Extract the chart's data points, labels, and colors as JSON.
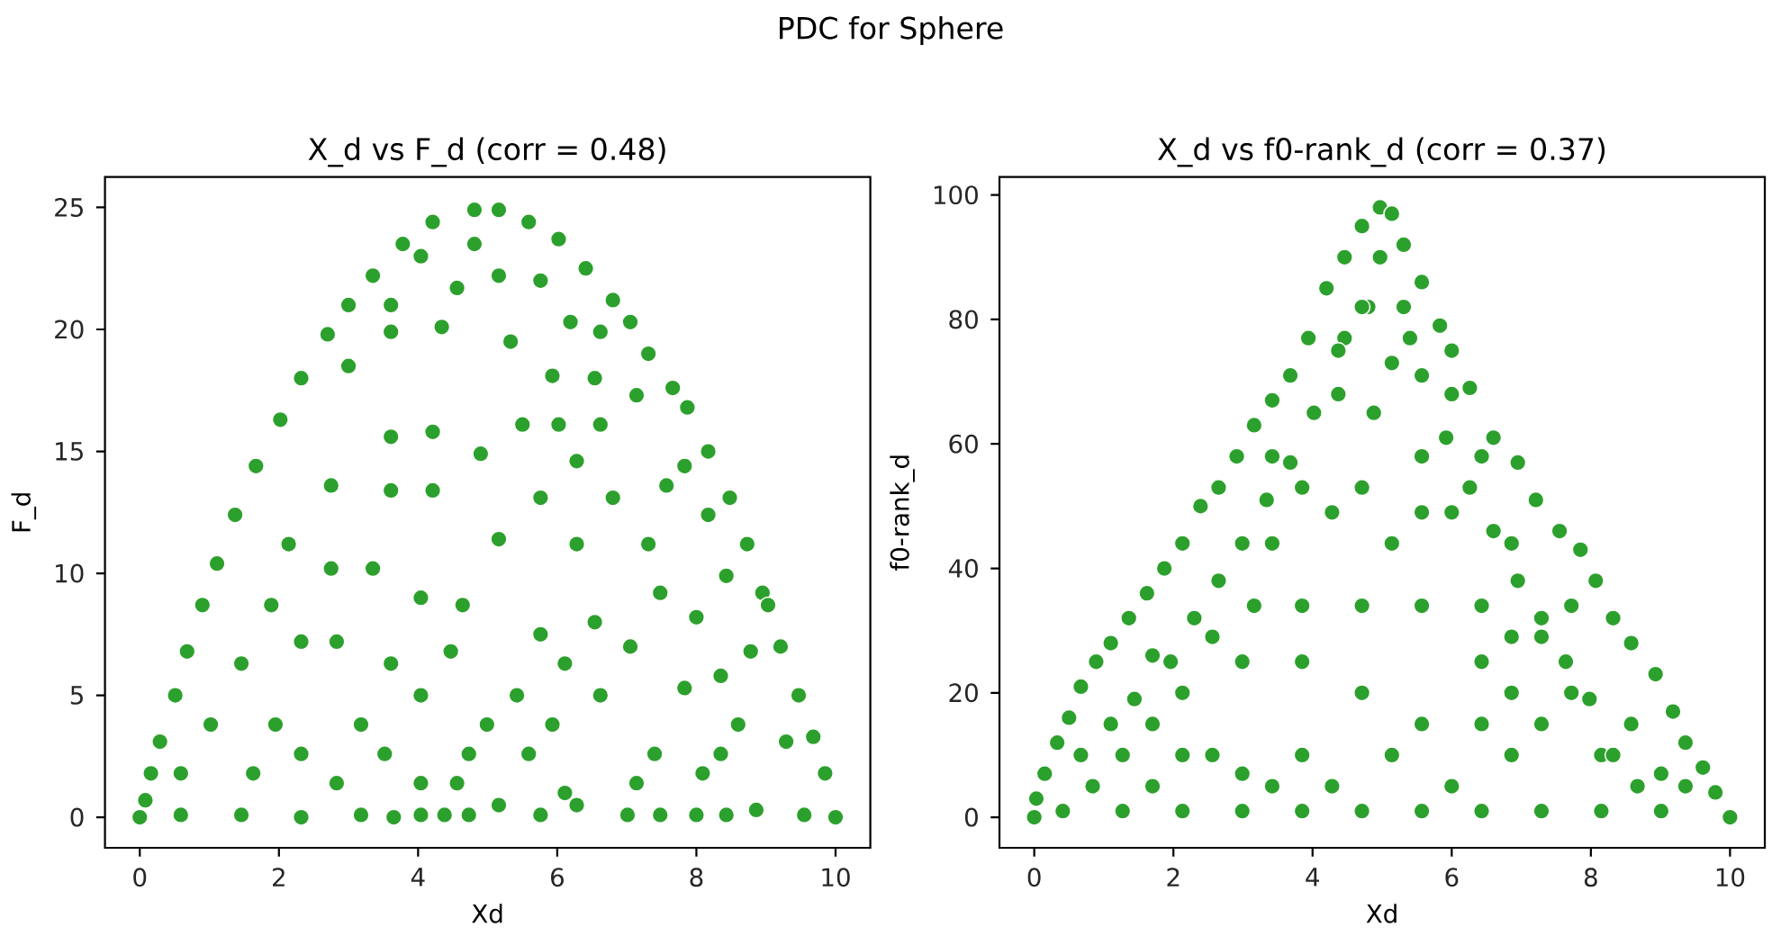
{
  "chart_data": [
    {
      "type": "scatter",
      "title": "X_d vs F_d (corr = 0.48)",
      "xlabel": "Xd",
      "ylabel": "F_d",
      "annotations": [
        "PDC for Sphere"
      ],
      "color": "#2ca02c",
      "marker": "circle",
      "xlim": [
        -0.5,
        10.5
      ],
      "ylim": [
        -1.25,
        26.25
      ],
      "xticks": [
        0,
        2,
        4,
        6,
        8,
        10
      ],
      "yticks": [
        0,
        5,
        10,
        15,
        20,
        25
      ],
      "x": [
        0,
        0.08,
        0.16,
        0.29,
        0.51,
        0.68,
        0.9,
        1.11,
        1.37,
        1.67,
        2.02,
        2.32,
        2.7,
        3.0,
        3.35,
        3.78,
        4.21,
        4.81,
        5.16,
        5.59,
        6.02,
        6.41,
        6.8,
        7.05,
        7.31,
        7.66,
        7.87,
        8.17,
        8.48,
        8.73,
        8.95,
        9.21,
        9.47,
        9.68,
        9.85,
        10,
        4.34,
        3.61,
        5.33,
        5.93,
        3.61,
        4.21,
        3.61,
        4.21,
        2.75,
        3.35,
        2.32,
        2.83,
        1.95,
        0.59,
        1.46,
        2.32,
        3.18,
        3.65,
        4.04,
        4.38,
        4.73,
        5.16,
        5.76,
        6.11,
        6.28,
        7.01,
        7.48,
        8.0,
        8.43,
        8.86,
        9.29,
        9.55,
        6.62,
        7.05,
        7.31,
        7.48,
        7.83,
        8.0,
        8.35,
        8.6,
        8.78,
        9.03,
        7.83,
        7.57,
        8.17,
        8.43,
        7.4,
        7.14,
        8.09,
        8.35,
        6.28,
        5.76,
        6.11,
        5.42,
        4.99,
        4.73,
        4.56,
        4.04,
        3.52,
        5.93,
        5.59,
        6.54,
        6.8,
        6.62,
        7.14,
        6.28,
        5.76,
        5.16,
        5.5,
        4.9,
        4.64,
        4.04,
        2.75,
        2.14,
        1.89,
        1.46,
        1.02,
        0.59,
        1.63,
        2.32,
        2.83,
        3.18,
        4.04,
        3.61,
        4.47,
        3.0,
        3.61,
        4.56,
        5.16,
        5.76,
        4.81,
        4.04,
        6.19,
        6.54,
        6.02,
        6.62
      ],
      "values": [
        0,
        0.7,
        1.8,
        3.1,
        5.0,
        6.8,
        8.7,
        10.4,
        12.4,
        14.4,
        16.3,
        18.0,
        19.8,
        21.0,
        22.2,
        23.5,
        24.4,
        24.9,
        24.9,
        24.4,
        23.7,
        22.5,
        21.2,
        20.3,
        19.0,
        17.6,
        16.8,
        15.0,
        13.1,
        11.2,
        9.2,
        7.0,
        5.0,
        3.3,
        1.8,
        0,
        20.1,
        19.9,
        19.5,
        18.1,
        15.6,
        15.8,
        13.4,
        13.4,
        10.2,
        10.2,
        7.2,
        7.2,
        3.8,
        0.1,
        0.1,
        0,
        0.1,
        0,
        0.1,
        0.1,
        0.1,
        0.5,
        0.1,
        1.0,
        0.5,
        0.1,
        0.1,
        0.1,
        0.1,
        0.3,
        3.1,
        0.1,
        5.0,
        7.0,
        11.2,
        9.2,
        5.3,
        8.2,
        5.8,
        3.8,
        6.8,
        8.7,
        14.4,
        13.6,
        12.4,
        9.9,
        2.6,
        1.4,
        1.8,
        2.6,
        11.2,
        7.5,
        6.3,
        5.0,
        3.8,
        2.6,
        1.4,
        1.4,
        2.6,
        3.8,
        2.6,
        8.0,
        13.1,
        16.1,
        17.3,
        14.6,
        13.1,
        11.4,
        16.1,
        14.9,
        8.7,
        9.0,
        13.6,
        11.2,
        8.7,
        6.3,
        3.8,
        1.8,
        1.8,
        2.6,
        1.4,
        3.8,
        5.0,
        6.3,
        6.8,
        18.5,
        21.0,
        21.7,
        22.2,
        22.0,
        23.5,
        23.0,
        20.3,
        18.0,
        16.1,
        19.9
      ]
    },
    {
      "type": "scatter",
      "title": "X_d vs f0-rank_d (corr = 0.37)",
      "xlabel": "Xd",
      "ylabel": "f0-rank_d",
      "color": "#2ca02c",
      "marker": "circle",
      "xlim": [
        -0.5,
        10.5
      ],
      "ylim": [
        -4.9,
        102.9
      ],
      "xticks": [
        0,
        2,
        4,
        6,
        8,
        10
      ],
      "yticks": [
        0,
        20,
        40,
        60,
        80,
        100
      ],
      "x": [
        0,
        0.03,
        0.15,
        0.33,
        0.5,
        0.67,
        0.89,
        1.1,
        1.36,
        1.62,
        1.87,
        2.13,
        2.39,
        2.65,
        2.91,
        3.16,
        3.42,
        3.68,
        3.94,
        4.2,
        4.46,
        4.71,
        4.97,
        5.14,
        5.31,
        5.57,
        5.83,
        6.0,
        6.26,
        6.6,
        6.95,
        7.21,
        7.55,
        7.85,
        8.07,
        8.32,
        8.58,
        8.93,
        9.18,
        9.36,
        9.61,
        9.79,
        10,
        0.41,
        1.27,
        2.13,
        2.99,
        3.85,
        4.71,
        5.57,
        6.43,
        7.29,
        8.15,
        9.01,
        1.7,
        2.99,
        3.85,
        4.71,
        5.14,
        4.8,
        4.37,
        3.42,
        2.56,
        2.13,
        1.27,
        0.84,
        3.85,
        4.71,
        5.57,
        6.0,
        6.43,
        6.86,
        7.29,
        7.72,
        8.15,
        8.58,
        9.01,
        6.43,
        5.57,
        2.99,
        4.28,
        6.86,
        7.72,
        5.14,
        3.85,
        5.57,
        6.0,
        5.4,
        4.46,
        3.16,
        1.7,
        6.86,
        0.67,
        1.1,
        1.44,
        1.96,
        2.3,
        2.65,
        2.99,
        3.34,
        3.68,
        4.02,
        4.37,
        4.71,
        4.97,
        5.31,
        5.57,
        5.92,
        6.26,
        6.6,
        6.95,
        7.29,
        7.64,
        7.98,
        8.32,
        8.67,
        9.36,
        7.29,
        6.43,
        6.0,
        5.14,
        3.42,
        2.56,
        1.7,
        2.13,
        3.85,
        4.71,
        4.28,
        3.42,
        6.43,
        6.86,
        5.57,
        4.88
      ],
      "values": [
        0,
        3,
        7,
        12,
        16,
        21,
        25,
        28,
        32,
        36,
        40,
        44,
        50,
        53,
        58,
        63,
        67,
        71,
        77,
        85,
        90,
        95,
        98,
        97,
        92,
        86,
        79,
        75,
        69,
        61,
        57,
        51,
        46,
        43,
        38,
        32,
        28,
        23,
        17,
        12,
        8,
        4,
        0,
        1,
        1,
        1,
        1,
        1,
        1,
        1,
        1,
        1,
        1,
        1,
        15,
        25,
        34,
        53,
        73,
        82,
        68,
        44,
        29,
        20,
        10,
        5,
        10,
        20,
        34,
        49,
        58,
        44,
        29,
        20,
        10,
        15,
        7,
        25,
        15,
        7,
        5,
        10,
        34,
        44,
        53,
        58,
        68,
        77,
        77,
        34,
        26,
        29,
        10,
        15,
        19,
        25,
        32,
        38,
        44,
        51,
        57,
        65,
        75,
        82,
        90,
        82,
        71,
        61,
        53,
        46,
        38,
        32,
        25,
        19,
        10,
        5,
        5,
        15,
        15,
        5,
        10,
        5,
        10,
        5,
        10,
        25,
        34,
        49,
        58,
        34,
        20,
        49,
        65
      ]
    }
  ]
}
